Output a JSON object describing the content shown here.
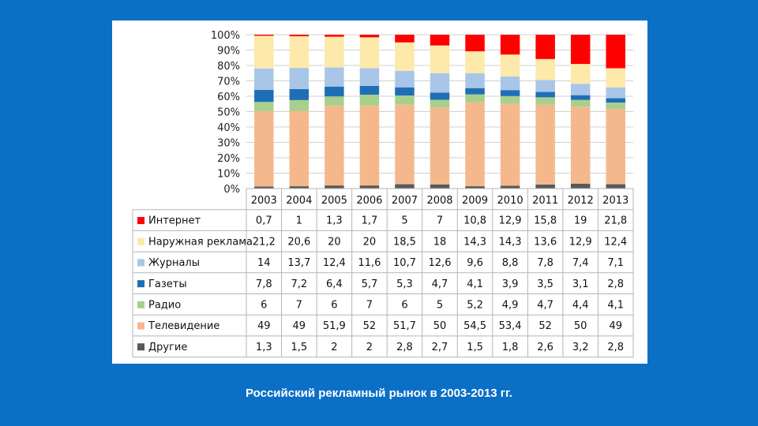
{
  "caption": "Российский рекламный рынок в 2003-2013 гг.",
  "chart_data": {
    "type": "bar",
    "stacked": "percent",
    "categories": [
      "2003",
      "2004",
      "2005",
      "2006",
      "2007",
      "2008",
      "2009",
      "2010",
      "2011",
      "2012",
      "2013"
    ],
    "ylim": [
      0,
      100
    ],
    "yticks": [
      "0%",
      "10%",
      "20%",
      "30%",
      "40%",
      "50%",
      "60%",
      "70%",
      "80%",
      "90%",
      "100%"
    ],
    "grid": true,
    "data_table": true,
    "series": [
      {
        "name": "Интернет",
        "color": "#ff0000",
        "labels": [
          "0,7",
          "1",
          "1,3",
          "1,7",
          "5",
          "7",
          "10,8",
          "12,9",
          "15,8",
          "19",
          "21,8"
        ],
        "values": [
          0.7,
          1,
          1.3,
          1.7,
          5,
          7,
          10.8,
          12.9,
          15.8,
          19,
          21.8
        ]
      },
      {
        "name": "Наружная реклама",
        "color": "#fde9a9",
        "labels": [
          "21,2",
          "20,6",
          "20",
          "20",
          "18,5",
          "18",
          "14,3",
          "14,3",
          "13,6",
          "12,9",
          "12,4"
        ],
        "values": [
          21.2,
          20.6,
          20,
          20,
          18.5,
          18,
          14.3,
          14.3,
          13.6,
          12.9,
          12.4
        ]
      },
      {
        "name": "Журналы",
        "color": "#a9c6e8",
        "labels": [
          "14",
          "13,7",
          "12,4",
          "11,6",
          "10,7",
          "12,6",
          "9,6",
          "8,8",
          "7,8",
          "7,4",
          "7,1"
        ],
        "values": [
          14,
          13.7,
          12.4,
          11.6,
          10.7,
          12.6,
          9.6,
          8.8,
          7.8,
          7.4,
          7.1
        ]
      },
      {
        "name": "Газеты",
        "color": "#1f6fb6",
        "labels": [
          "7,8",
          "7,2",
          "6,4",
          "5,7",
          "5,3",
          "4,7",
          "4,1",
          "3,9",
          "3,5",
          "3,1",
          "2,8"
        ],
        "values": [
          7.8,
          7.2,
          6.4,
          5.7,
          5.3,
          4.7,
          4.1,
          3.9,
          3.5,
          3.1,
          2.8
        ]
      },
      {
        "name": "Радио",
        "color": "#a7d08c",
        "labels": [
          "6",
          "7",
          "6",
          "7",
          "6",
          "5",
          "5,2",
          "4,9",
          "4,7",
          "4,4",
          "4,1"
        ],
        "values": [
          6,
          7,
          6,
          7,
          6,
          5,
          5.2,
          4.9,
          4.7,
          4.4,
          4.1
        ]
      },
      {
        "name": "Телевидение",
        "color": "#f5b88c",
        "labels": [
          "49",
          "49",
          "51,9",
          "52",
          "51,7",
          "50",
          "54,5",
          "53,4",
          "52",
          "50",
          "49"
        ],
        "values": [
          49,
          49,
          51.9,
          52,
          51.7,
          50,
          54.5,
          53.4,
          52,
          50,
          49
        ]
      },
      {
        "name": "Другие",
        "color": "#595959",
        "labels": [
          "1,3",
          "1,5",
          "2",
          "2",
          "2,8",
          "2,7",
          "1,5",
          "1,8",
          "2,6",
          "3,2",
          "2,8"
        ],
        "values": [
          1.3,
          1.5,
          2,
          2,
          2.8,
          2.7,
          1.5,
          1.8,
          2.6,
          3.2,
          2.8
        ]
      }
    ]
  }
}
